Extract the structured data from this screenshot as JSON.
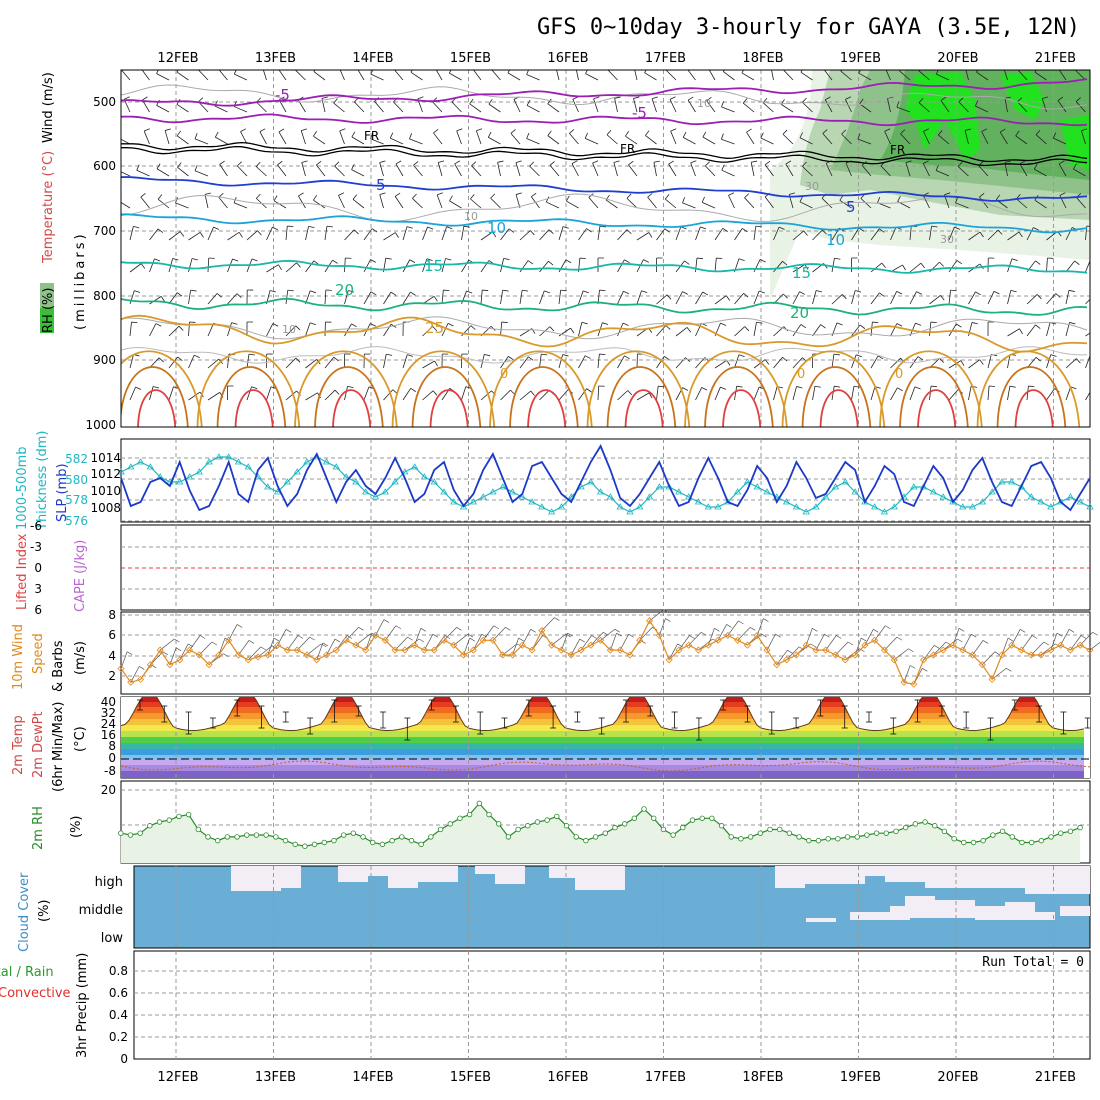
{
  "title": "GFS 0~10day 3-hourly for GAYA (3.5E, 12N)",
  "dates": [
    "12FEB",
    "13FEB",
    "14FEB",
    "15FEB",
    "16FEB",
    "17FEB",
    "18FEB",
    "19FEB",
    "20FEB",
    "21FEB"
  ],
  "panels": {
    "upper": {
      "labels": [
        "RH (%)",
        "Temperature (°C)",
        "Wind (m/s)",
        "(millibars)"
      ],
      "y_ticks": [
        "500",
        "600",
        "700",
        "800",
        "900",
        "1000"
      ],
      "contour_labels": [
        "-5",
        "-5",
        "FR",
        "FR",
        "FR",
        "5",
        "5",
        "10",
        "10",
        "15",
        "15",
        "20",
        "20",
        "25",
        "10",
        "10",
        "10",
        "30",
        "30",
        "0",
        "0",
        "0"
      ]
    },
    "slp": {
      "labels": [
        "1000-500mb",
        "Thickness (dm)",
        "SLP (mb)"
      ],
      "left_ticks": [
        "582",
        "580",
        "578",
        "576"
      ],
      "right_ticks": [
        "1014",
        "1012",
        "1010",
        "1008"
      ]
    },
    "cape": {
      "labels": [
        "Lifted Index",
        "CAPE (J/kg)"
      ],
      "ticks": [
        "-6",
        "-3",
        "0",
        "3",
        "6"
      ]
    },
    "wind10m": {
      "labels": [
        "10m Wind",
        "Speed",
        "& Barbs",
        "(m/s)"
      ],
      "ticks": [
        "8",
        "6",
        "4",
        "2"
      ]
    },
    "temp2m": {
      "labels": [
        "2m Temp",
        "2m DewPt",
        "(6hr Min/Max)",
        "(°C)"
      ],
      "ticks": [
        "40",
        "32",
        "24",
        "16",
        "8",
        "0",
        "-8"
      ]
    },
    "rh2m": {
      "labels": [
        "2m RH",
        "(%)"
      ],
      "ticks": [
        "20"
      ]
    },
    "cloud": {
      "labels": [
        "Cloud Cover",
        "(%)"
      ],
      "levels": [
        "high",
        "middle",
        "low"
      ]
    },
    "precip": {
      "labels": [
        "Total / Rain",
        "Convective",
        "3hr Precip (mm)"
      ],
      "ticks": [
        "0.8",
        "0.6",
        "0.4",
        "0.2",
        "0"
      ],
      "run_total": "Run Total = 0"
    }
  },
  "chart_data": {
    "type": "line",
    "x_dates": [
      "12FEB",
      "13FEB",
      "14FEB",
      "15FEB",
      "16FEB",
      "17FEB",
      "18FEB",
      "19FEB",
      "20FEB",
      "21FEB"
    ],
    "slp_mb": [
      1011,
      1007.5,
      1008,
      1010.5,
      1011,
      1010,
      1013,
      1009.5,
      1007,
      1007.5,
      1010,
      1013,
      1009,
      1008,
      1012,
      1013.5,
      1010,
      1007.5,
      1009,
      1012,
      1014,
      1011,
      1008,
      1010.5,
      1012,
      1010,
      1009,
      1011,
      1013.5,
      1011,
      1008,
      1009,
      1012,
      1013,
      1009.5,
      1007.5,
      1009,
      1012,
      1014,
      1011,
      1008,
      1009,
      1012.5,
      1013,
      1011,
      1009,
      1008,
      1010.5,
      1013,
      1015,
      1012,
      1008.5,
      1007.5,
      1009,
      1011,
      1013,
      1010,
      1007.5,
      1008,
      1011,
      1013.5,
      1011,
      1008,
      1007.5,
      1009.5,
      1012.5,
      1011,
      1008,
      1010,
      1013,
      1011,
      1008.5,
      1009,
      1011,
      1013,
      1012,
      1008,
      1010,
      1012.5,
      1011.5,
      1008,
      1007.5,
      1010,
      1012.5,
      1011,
      1008,
      1009.5,
      1012,
      1013.5,
      1010.5,
      1008,
      1007.5,
      1010,
      1012.5,
      1013,
      1011,
      1008,
      1007,
      1009,
      1011
    ],
    "thickness_dm": [
      580.5,
      581,
      581.5,
      581,
      580,
      579.5,
      579.5,
      580,
      580.5,
      581.5,
      582,
      582,
      581.5,
      581,
      580,
      579,
      578.5,
      579.5,
      580.5,
      581.5,
      582,
      581.5,
      581,
      580,
      579.5,
      578.5,
      578,
      578.5,
      579.5,
      580.5,
      581,
      580,
      579.5,
      578.5,
      577.5,
      577,
      577.5,
      578,
      578.5,
      579,
      578.5,
      578,
      577.5,
      577,
      576.5,
      577,
      578,
      579,
      579.5,
      578.5,
      578,
      577,
      576.5,
      577,
      578,
      579,
      579,
      578.5,
      578,
      577.5,
      577,
      577,
      577.5,
      578.5,
      579.5,
      579,
      578.5,
      578,
      577.5,
      577,
      576.5,
      577,
      578,
      579,
      579.5,
      578.5,
      577.5,
      577,
      576.5,
      577,
      578,
      579,
      579,
      578.5,
      578,
      577.5,
      577,
      577,
      577.5,
      578.5,
      579.5,
      579.5,
      579,
      578,
      577.5,
      577,
      577.5,
      578,
      577.5,
      577
    ],
    "wind10m_ms": [
      2.6,
      1.2,
      1.5,
      3.0,
      4.5,
      3.0,
      3.5,
      4.5,
      4.0,
      3.0,
      4.0,
      5.5,
      4.0,
      3.5,
      3.8,
      4.0,
      5.0,
      4.5,
      4.5,
      4.0,
      3.5,
      4.0,
      4.5,
      5.5,
      5.0,
      4.5,
      6.0,
      5.5,
      4.5,
      4.5,
      5.0,
      4.5,
      4.5,
      5.5,
      5.0,
      4.0,
      4.5,
      5.5,
      5.5,
      4.0,
      4.0,
      5.0,
      4.5,
      6.5,
      5.0,
      4.5,
      4.0,
      4.5,
      5.0,
      5.5,
      4.5,
      4.5,
      4.0,
      5.5,
      7.5,
      6.0,
      3.5,
      4.5,
      5.0,
      4.5,
      5.0,
      5.5,
      6.0,
      5.5,
      5.0,
      6.0,
      4.5,
      3.0,
      3.5,
      4.0,
      5.0,
      4.5,
      4.5,
      4.0,
      3.5,
      4.0,
      5.0,
      5.5,
      4.5,
      3.5,
      1.2,
      1.0,
      3.5,
      4.0,
      4.5,
      5.0,
      4.5,
      4.0,
      3.0,
      1.5,
      4.0,
      5.0,
      4.5,
      4.0,
      4.0,
      4.5,
      5.0,
      4.5,
      5.0,
      4.5
    ],
    "rh2m_pct": [
      8,
      7.5,
      8,
      10,
      11,
      11.5,
      12.5,
      13,
      9,
      7,
      6,
      7,
      7,
      7.5,
      7.5,
      7.5,
      7,
      6,
      5,
      4.5,
      5,
      5.5,
      6,
      7.5,
      8,
      7,
      5.5,
      5,
      6,
      7,
      6,
      5,
      7,
      9,
      10.5,
      12,
      13,
      16,
      13,
      10.5,
      7,
      9,
      10,
      11,
      11.5,
      12.5,
      10,
      7,
      6,
      7,
      8,
      9.5,
      10.5,
      12,
      14.5,
      12,
      9,
      7.5,
      9.5,
      11.5,
      12,
      12,
      10,
      7,
      6.5,
      7,
      8,
      9,
      9,
      8,
      7,
      6,
      6,
      6.5,
      6.5,
      7,
      7,
      7.5,
      8,
      8,
      8.5,
      9.5,
      10.5,
      11,
      10,
      8.5,
      6.5,
      5.5,
      5.5,
      6,
      7.5,
      8.5,
      7,
      5.5,
      5.5,
      6,
      7,
      8,
      8.5,
      9.5
    ],
    "precip_mm": [
      0,
      0,
      0,
      0,
      0,
      0,
      0,
      0,
      0,
      0
    ],
    "run_total_mm": 0
  }
}
